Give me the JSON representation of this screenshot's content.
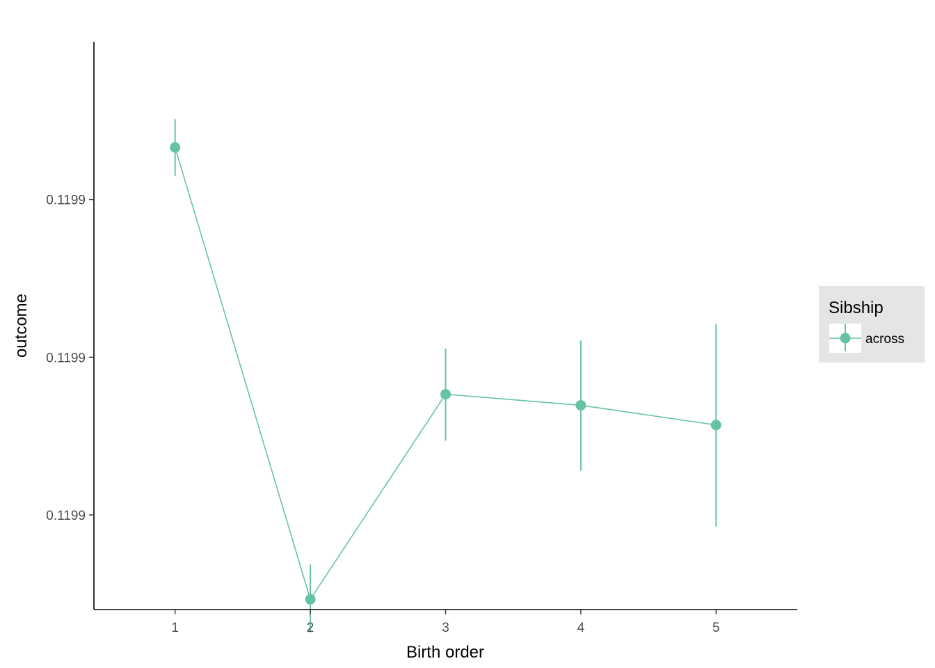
{
  "chart_data": {
    "type": "line",
    "xlabel": "Birth order",
    "ylabel": "outcome",
    "x": [
      1,
      2,
      3,
      4,
      5
    ],
    "x_ticks": [
      "1",
      "2",
      "3",
      "4",
      "5"
    ],
    "xlim": [
      0.4,
      5.6
    ],
    "y_ticks": [
      {
        "value": 0.11993,
        "label": "0.1199"
      },
      {
        "value": 0.11991,
        "label": "0.1199"
      },
      {
        "value": 0.11989,
        "label": "0.1199"
      }
    ],
    "ylim": [
      0.119878,
      0.11995
    ],
    "grid": false,
    "legend": {
      "title": "Sibship",
      "placement": "right"
    },
    "series": [
      {
        "name": "across",
        "color": "#66c2a5",
        "points": [
          {
            "x": 1,
            "y": 0.1199366,
            "ymin": 0.119933,
            "ymax": 0.1199402
          },
          {
            "x": 2,
            "y": 0.1198793,
            "ymin": 0.1198751,
            "ymax": 0.1198837
          },
          {
            "x": 3,
            "y": 0.1199053,
            "ymin": 0.1198994,
            "ymax": 0.1199111
          },
          {
            "x": 4,
            "y": 0.1199039,
            "ymin": 0.1198956,
            "ymax": 0.1199121
          },
          {
            "x": 5,
            "y": 0.1199014,
            "ymin": 0.1198885,
            "ymax": 0.1199142
          }
        ]
      }
    ]
  }
}
